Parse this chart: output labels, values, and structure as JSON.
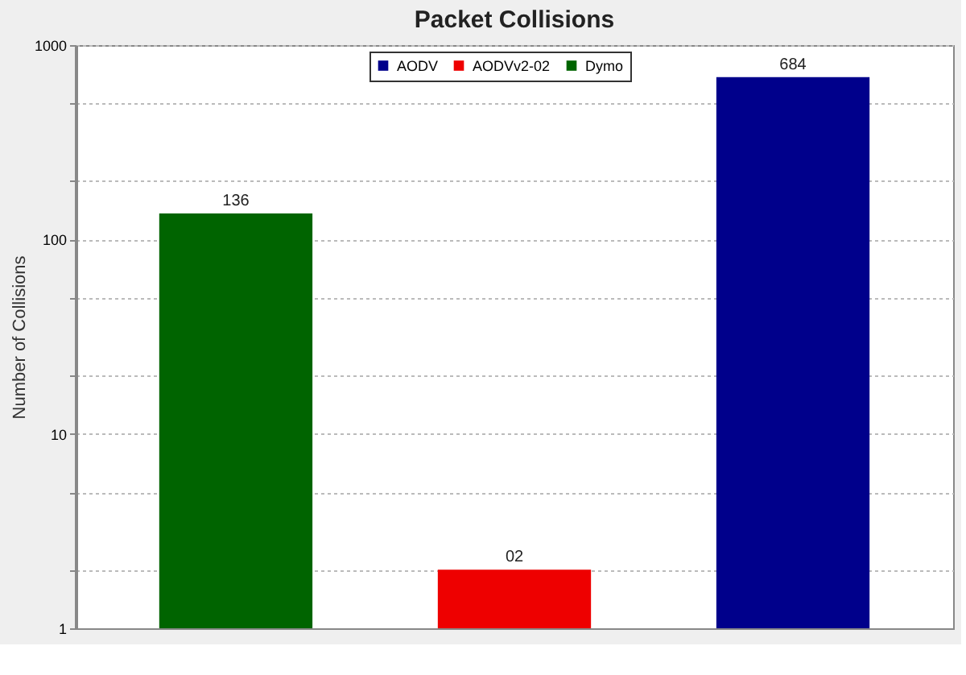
{
  "chart_data": {
    "type": "bar",
    "title": "Packet Collisions",
    "ylabel": "Number of Collisions",
    "categories": [
      null,
      null,
      null
    ],
    "series": [
      {
        "name": "AODV",
        "color": "#00008b",
        "values": [
          null,
          null,
          684
        ],
        "value_labels": [
          null,
          null,
          "684"
        ]
      },
      {
        "name": "AODVv2-02",
        "color": "#ee0000",
        "values": [
          null,
          2,
          null
        ],
        "value_labels": [
          null,
          "02",
          null
        ]
      },
      {
        "name": "Dymo",
        "color": "#006400",
        "values": [
          136,
          null,
          null
        ],
        "value_labels": [
          "136",
          null,
          null
        ]
      }
    ],
    "log": "y",
    "ylim": [
      1,
      1000
    ],
    "yticks": [
      1,
      {
        "value": 2,
        "label": null
      },
      {
        "value": 5,
        "label": null
      },
      10,
      {
        "value": 20,
        "label": null
      },
      {
        "value": 50,
        "label": null
      },
      100,
      {
        "value": 200,
        "label": null
      },
      {
        "value": 500,
        "label": null
      },
      1000
    ],
    "grid": "y",
    "legend": "top",
    "tick_labels": "y"
  }
}
